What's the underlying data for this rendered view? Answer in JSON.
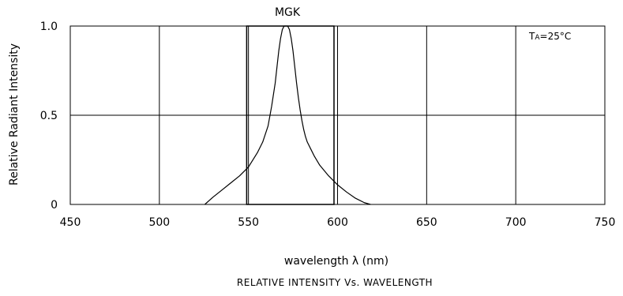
{
  "chart_data": {
    "type": "line",
    "title": "MGK",
    "subtitle": "RELATIVE INTENSITY Vs. WAVELENGTH",
    "xlabel": "wavelength λ (nm)",
    "ylabel": "Relative Radiant Intensity",
    "annotation": {
      "main": "T",
      "sub": "A",
      "rest": "=25°C"
    },
    "xlim": [
      450,
      750
    ],
    "ylim": [
      0,
      1.0
    ],
    "x_ticks": [
      450,
      500,
      550,
      600,
      650,
      700,
      750
    ],
    "x_tick_labels": [
      "450",
      "500",
      "550",
      "600",
      "650",
      "700",
      "750"
    ],
    "y_ticks": [
      0,
      0.5,
      1.0
    ],
    "y_tick_labels": [
      "0",
      "0.5",
      "1.0"
    ],
    "grid": true,
    "series": [
      {
        "x": [
          525.5,
          530,
          535,
          540,
          545,
          550,
          555,
          558,
          561,
          563,
          565,
          566,
          567,
          568,
          569,
          570,
          571,
          572,
          573,
          574,
          575,
          576,
          577,
          578,
          579,
          580,
          581,
          582,
          583,
          585,
          587,
          590,
          595,
          600,
          605,
          610,
          615,
          618.5
        ],
        "y": [
          0.0,
          0.04,
          0.08,
          0.12,
          0.16,
          0.21,
          0.29,
          0.35,
          0.44,
          0.55,
          0.68,
          0.77,
          0.86,
          0.93,
          0.98,
          1.0,
          1.0,
          1.0,
          0.98,
          0.93,
          0.86,
          0.77,
          0.68,
          0.6,
          0.53,
          0.47,
          0.42,
          0.38,
          0.35,
          0.31,
          0.27,
          0.22,
          0.16,
          0.11,
          0.07,
          0.035,
          0.01,
          0.0
        ]
      }
    ],
    "box_region": {
      "x_from": 549,
      "x_to": 598,
      "y_from": 0,
      "y_to": 1.0
    }
  }
}
